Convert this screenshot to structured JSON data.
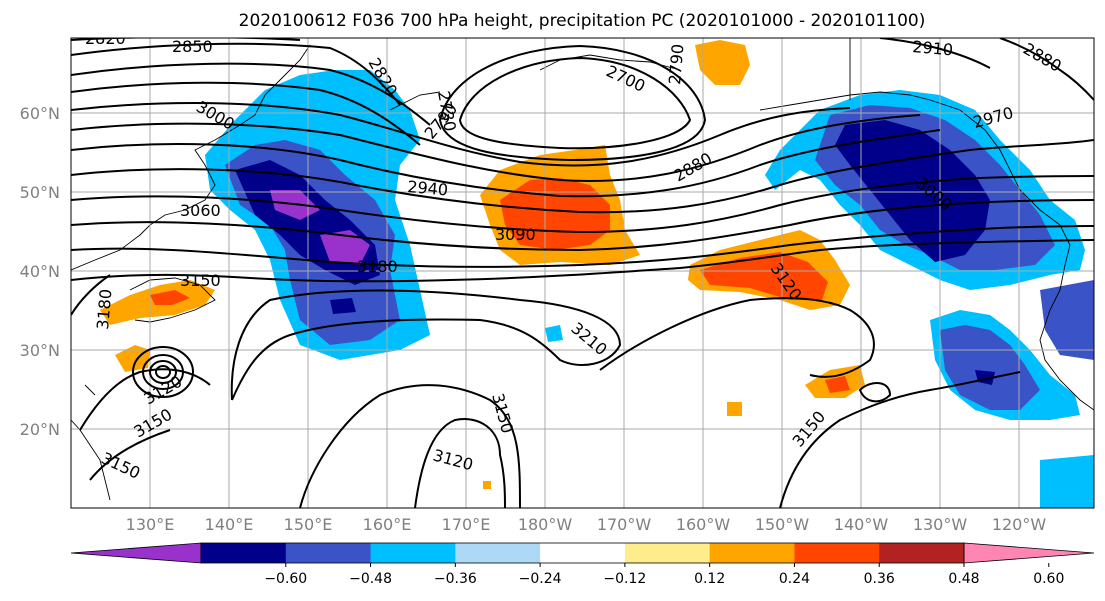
{
  "title": "2020100612 F036 700 hPa height, precipitation PC (2020101000 - 2020101100)",
  "lat_labels": [
    "60°N",
    "50°N",
    "40°N",
    "30°N",
    "20°N"
  ],
  "lon_labels": [
    "130°E",
    "140°E",
    "150°E",
    "160°E",
    "170°E",
    "180°W",
    "170°W",
    "160°W",
    "150°W",
    "140°W",
    "130°W",
    "120°W"
  ],
  "colorbar": {
    "colors": [
      "#9932CC",
      "#00008B",
      "#3A54C8",
      "#00BFFF",
      "#ADD8F6",
      "#FFFFFF",
      "#FFEC8B",
      "#FFA500",
      "#FF4500",
      "#B22222",
      "#FF85B3"
    ],
    "ticks": [
      "−0.60",
      "−0.48",
      "−0.36",
      "−0.24",
      "−0.12",
      "0.12",
      "0.24",
      "0.36",
      "0.48",
      "0.60"
    ]
  },
  "contour_labels": [
    "2820",
    "2850",
    "2820",
    "2730",
    "2790",
    "2700",
    "2790",
    "2880",
    "2910",
    "2880",
    "3000",
    "2940",
    "2970",
    "3060",
    "3090",
    "3000",
    "3180",
    "3150",
    "3120",
    "3180",
    "3210",
    "3150",
    "3120",
    "3150",
    "3120",
    "3150",
    "3150"
  ]
}
